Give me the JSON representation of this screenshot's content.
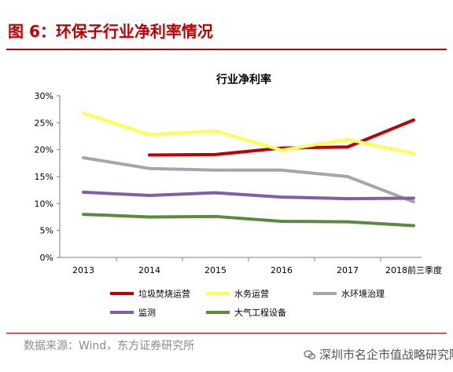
{
  "figure": {
    "title": "图 6：环保子行业净利率情况",
    "source": "数据来源：Wind，东方证券研究所",
    "watermark": "深圳市名企市值战略研究院"
  },
  "chart_data": {
    "type": "line",
    "title": "行业净利率",
    "categories": [
      "2013",
      "2014",
      "2015",
      "2016",
      "2017",
      "2018前三季度"
    ],
    "y_ticks": [
      "0%",
      "5%",
      "10%",
      "15%",
      "20%",
      "25%",
      "30%"
    ],
    "ylim": [
      0,
      30
    ],
    "grid": false,
    "legend_position": "bottom",
    "series": [
      {
        "name": "垃圾焚烧运营",
        "color": "#c00000",
        "values": [
          null,
          19.0,
          19.1,
          20.3,
          20.5,
          25.5
        ]
      },
      {
        "name": "水务运营",
        "color": "#ffff4d",
        "values": [
          26.8,
          22.8,
          23.5,
          19.9,
          21.9,
          19.3
        ]
      },
      {
        "name": "水环境治理",
        "color": "#a6a6a6",
        "values": [
          18.5,
          16.5,
          16.2,
          16.2,
          15.0,
          10.3
        ]
      },
      {
        "name": "监测",
        "color": "#7f5fa8",
        "values": [
          12.1,
          11.5,
          12.0,
          11.2,
          10.9,
          11.0
        ]
      },
      {
        "name": "大气工程设备",
        "color": "#5b8a3c",
        "values": [
          8.0,
          7.5,
          7.6,
          6.7,
          6.6,
          5.9
        ]
      }
    ]
  }
}
